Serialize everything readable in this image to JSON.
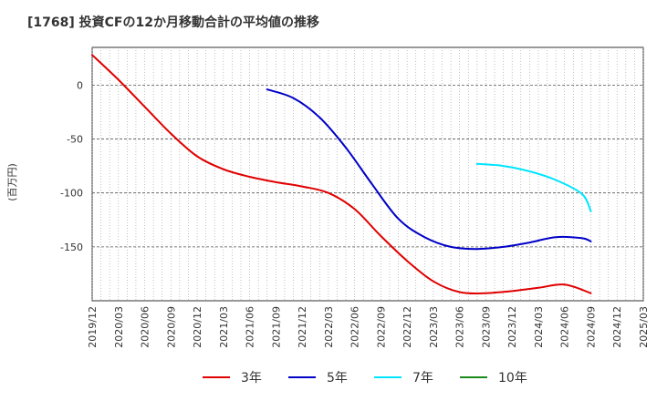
{
  "chart_data": {
    "type": "line",
    "title": "[1768]  投資CFの12か月移動合計の平均値の推移",
    "ylabel": "(百万円)",
    "xlabel": "",
    "ylim": [
      -200,
      35
    ],
    "yticks": [
      0,
      -50,
      -100,
      -150
    ],
    "ytick_labels": [
      "0",
      "-50",
      "-100",
      "-150"
    ],
    "x_range": [
      "2019-12",
      "2025-03"
    ],
    "xtick_labels": [
      "2019/12",
      "2020/03",
      "2020/06",
      "2020/09",
      "2020/12",
      "2021/03",
      "2021/06",
      "2021/09",
      "2021/12",
      "2022/03",
      "2022/06",
      "2022/09",
      "2022/12",
      "2023/03",
      "2023/06",
      "2023/09",
      "2023/12",
      "2024/03",
      "2024/06",
      "2024/09",
      "2024/12",
      "2025/03"
    ],
    "grid": true,
    "legend_position": "bottom",
    "series": [
      {
        "name": "3年",
        "color": "#e00000",
        "points": [
          [
            "2019-12",
            28
          ],
          [
            "2020-03",
            5
          ],
          [
            "2020-06",
            -20
          ],
          [
            "2020-09",
            -45
          ],
          [
            "2020-12",
            -66
          ],
          [
            "2021-03",
            -78
          ],
          [
            "2021-06",
            -85
          ],
          [
            "2021-09",
            -90
          ],
          [
            "2021-12",
            -94
          ],
          [
            "2022-03",
            -100
          ],
          [
            "2022-06",
            -115
          ],
          [
            "2022-09",
            -140
          ],
          [
            "2022-12",
            -163
          ],
          [
            "2023-03",
            -182
          ],
          [
            "2023-06",
            -192
          ],
          [
            "2023-09",
            -193
          ],
          [
            "2023-12",
            -191
          ],
          [
            "2024-03",
            -188
          ],
          [
            "2024-06",
            -185
          ],
          [
            "2024-09",
            -193
          ]
        ]
      },
      {
        "name": "5年",
        "color": "#0000c8",
        "points": [
          [
            "2021-08",
            -4
          ],
          [
            "2021-11",
            -12
          ],
          [
            "2022-02",
            -30
          ],
          [
            "2022-05",
            -58
          ],
          [
            "2022-08",
            -92
          ],
          [
            "2022-11",
            -124
          ],
          [
            "2023-02",
            -141
          ],
          [
            "2023-05",
            -150
          ],
          [
            "2023-08",
            -152
          ],
          [
            "2023-11",
            -150
          ],
          [
            "2024-02",
            -146
          ],
          [
            "2024-05",
            -141
          ],
          [
            "2024-08",
            -142
          ],
          [
            "2024-09",
            -145
          ]
        ]
      },
      {
        "name": "7年",
        "color": "#00e5ff",
        "points": [
          [
            "2023-08",
            -73
          ],
          [
            "2023-11",
            -75
          ],
          [
            "2024-02",
            -80
          ],
          [
            "2024-05",
            -88
          ],
          [
            "2024-08",
            -101
          ],
          [
            "2024-09",
            -117
          ]
        ]
      },
      {
        "name": "10年",
        "color": "#1a8a1a",
        "points": []
      }
    ]
  }
}
